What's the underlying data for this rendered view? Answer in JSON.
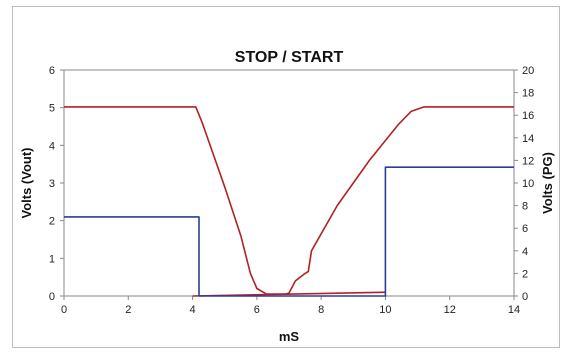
{
  "chart_data": {
    "type": "line",
    "title": "STOP / START",
    "xlabel": "mS",
    "ylabel_left": "Volts (Vout)",
    "ylabel_right": "Volts (PG)",
    "xlim": [
      0,
      14
    ],
    "ylim_left": [
      0,
      6
    ],
    "ylim_right": [
      0,
      20
    ],
    "x_ticks": [
      "0",
      "2",
      "4",
      "6",
      "8",
      "10",
      "12",
      "14"
    ],
    "y_left_ticks": [
      "0",
      "1",
      "2",
      "3",
      "4",
      "5",
      "6"
    ],
    "y_right_ticks": [
      "0",
      "2",
      "4",
      "6",
      "8",
      "10",
      "12",
      "14",
      "16",
      "18",
      "20"
    ],
    "grid": "none",
    "series": [
      {
        "axis": "left",
        "color": "#b22222",
        "points": [
          [
            0,
            5.02
          ],
          [
            4.1,
            5.02
          ],
          [
            4.3,
            4.6
          ],
          [
            5.0,
            2.9
          ],
          [
            5.5,
            1.6
          ],
          [
            5.8,
            0.6
          ],
          [
            6.0,
            0.2
          ],
          [
            6.3,
            0.05
          ],
          [
            6.9,
            0.05
          ],
          [
            7.0,
            0.08
          ],
          [
            7.2,
            0.4
          ],
          [
            7.5,
            0.6
          ],
          [
            7.6,
            0.65
          ],
          [
            7.7,
            1.2
          ],
          [
            8.5,
            2.4
          ],
          [
            9.5,
            3.6
          ],
          [
            10.4,
            4.55
          ],
          [
            10.8,
            4.9
          ],
          [
            11.2,
            5.02
          ],
          [
            14,
            5.02
          ]
        ]
      },
      {
        "axis": "left",
        "color": "#b22222",
        "points": [
          [
            4.0,
            0.0
          ],
          [
            10.0,
            0.1
          ]
        ]
      },
      {
        "axis": "right",
        "color": "#2c3d9a",
        "points": [
          [
            0,
            7.0
          ],
          [
            4.2,
            7.0
          ],
          [
            4.2,
            0
          ],
          [
            10.0,
            0
          ],
          [
            10.0,
            11.4
          ],
          [
            14,
            11.4
          ]
        ]
      }
    ]
  }
}
